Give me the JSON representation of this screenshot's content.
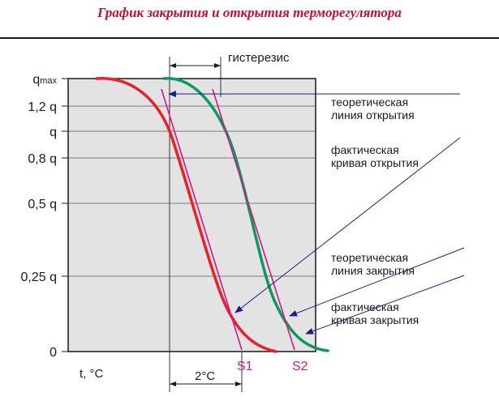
{
  "title": "График закрытия и открытия терморегулятора",
  "chart_data": {
    "type": "line",
    "title": "График закрытия и открытия терморегулятора",
    "y_ticks": [
      {
        "label": "q",
        "sub": "max",
        "q": 1.4
      },
      {
        "label": "1,2 q",
        "q": 1.2
      },
      {
        "label": "q",
        "q": 1.0
      },
      {
        "label": "0,8 q",
        "q": 0.8
      },
      {
        "label": "0,5 q",
        "q": 0.5
      },
      {
        "label": "0,25 q",
        "q": 0.25
      },
      {
        "label": "0",
        "q": 0.0
      }
    ],
    "xlabel": "t, °C",
    "annotations": {
      "hysteresis": "гистерезис",
      "two_degrees": "2°C",
      "s1": "S1",
      "s2": "S2"
    },
    "legend": [
      {
        "name": "теоретическая линия открытия",
        "lines": [
          "теоретическая",
          "линия открытия"
        ]
      },
      {
        "name": "фактическая кривая открытия",
        "lines": [
          "фактическая",
          "кривая открытия"
        ]
      },
      {
        "name": "теоретическая линия закрытия",
        "lines": [
          "теоретическая",
          "линия закрытия"
        ]
      },
      {
        "name": "фактическая кривая закрытия",
        "lines": [
          "фактическая",
          "кривая закрытия"
        ]
      }
    ],
    "colors": {
      "opening_curve": "#e8202a",
      "closing_curve": "#0a9a5a",
      "theoretical_line": "#d4148c",
      "pointer": "#1c1c8c",
      "plot_bg": "#e3e3e3"
    }
  }
}
